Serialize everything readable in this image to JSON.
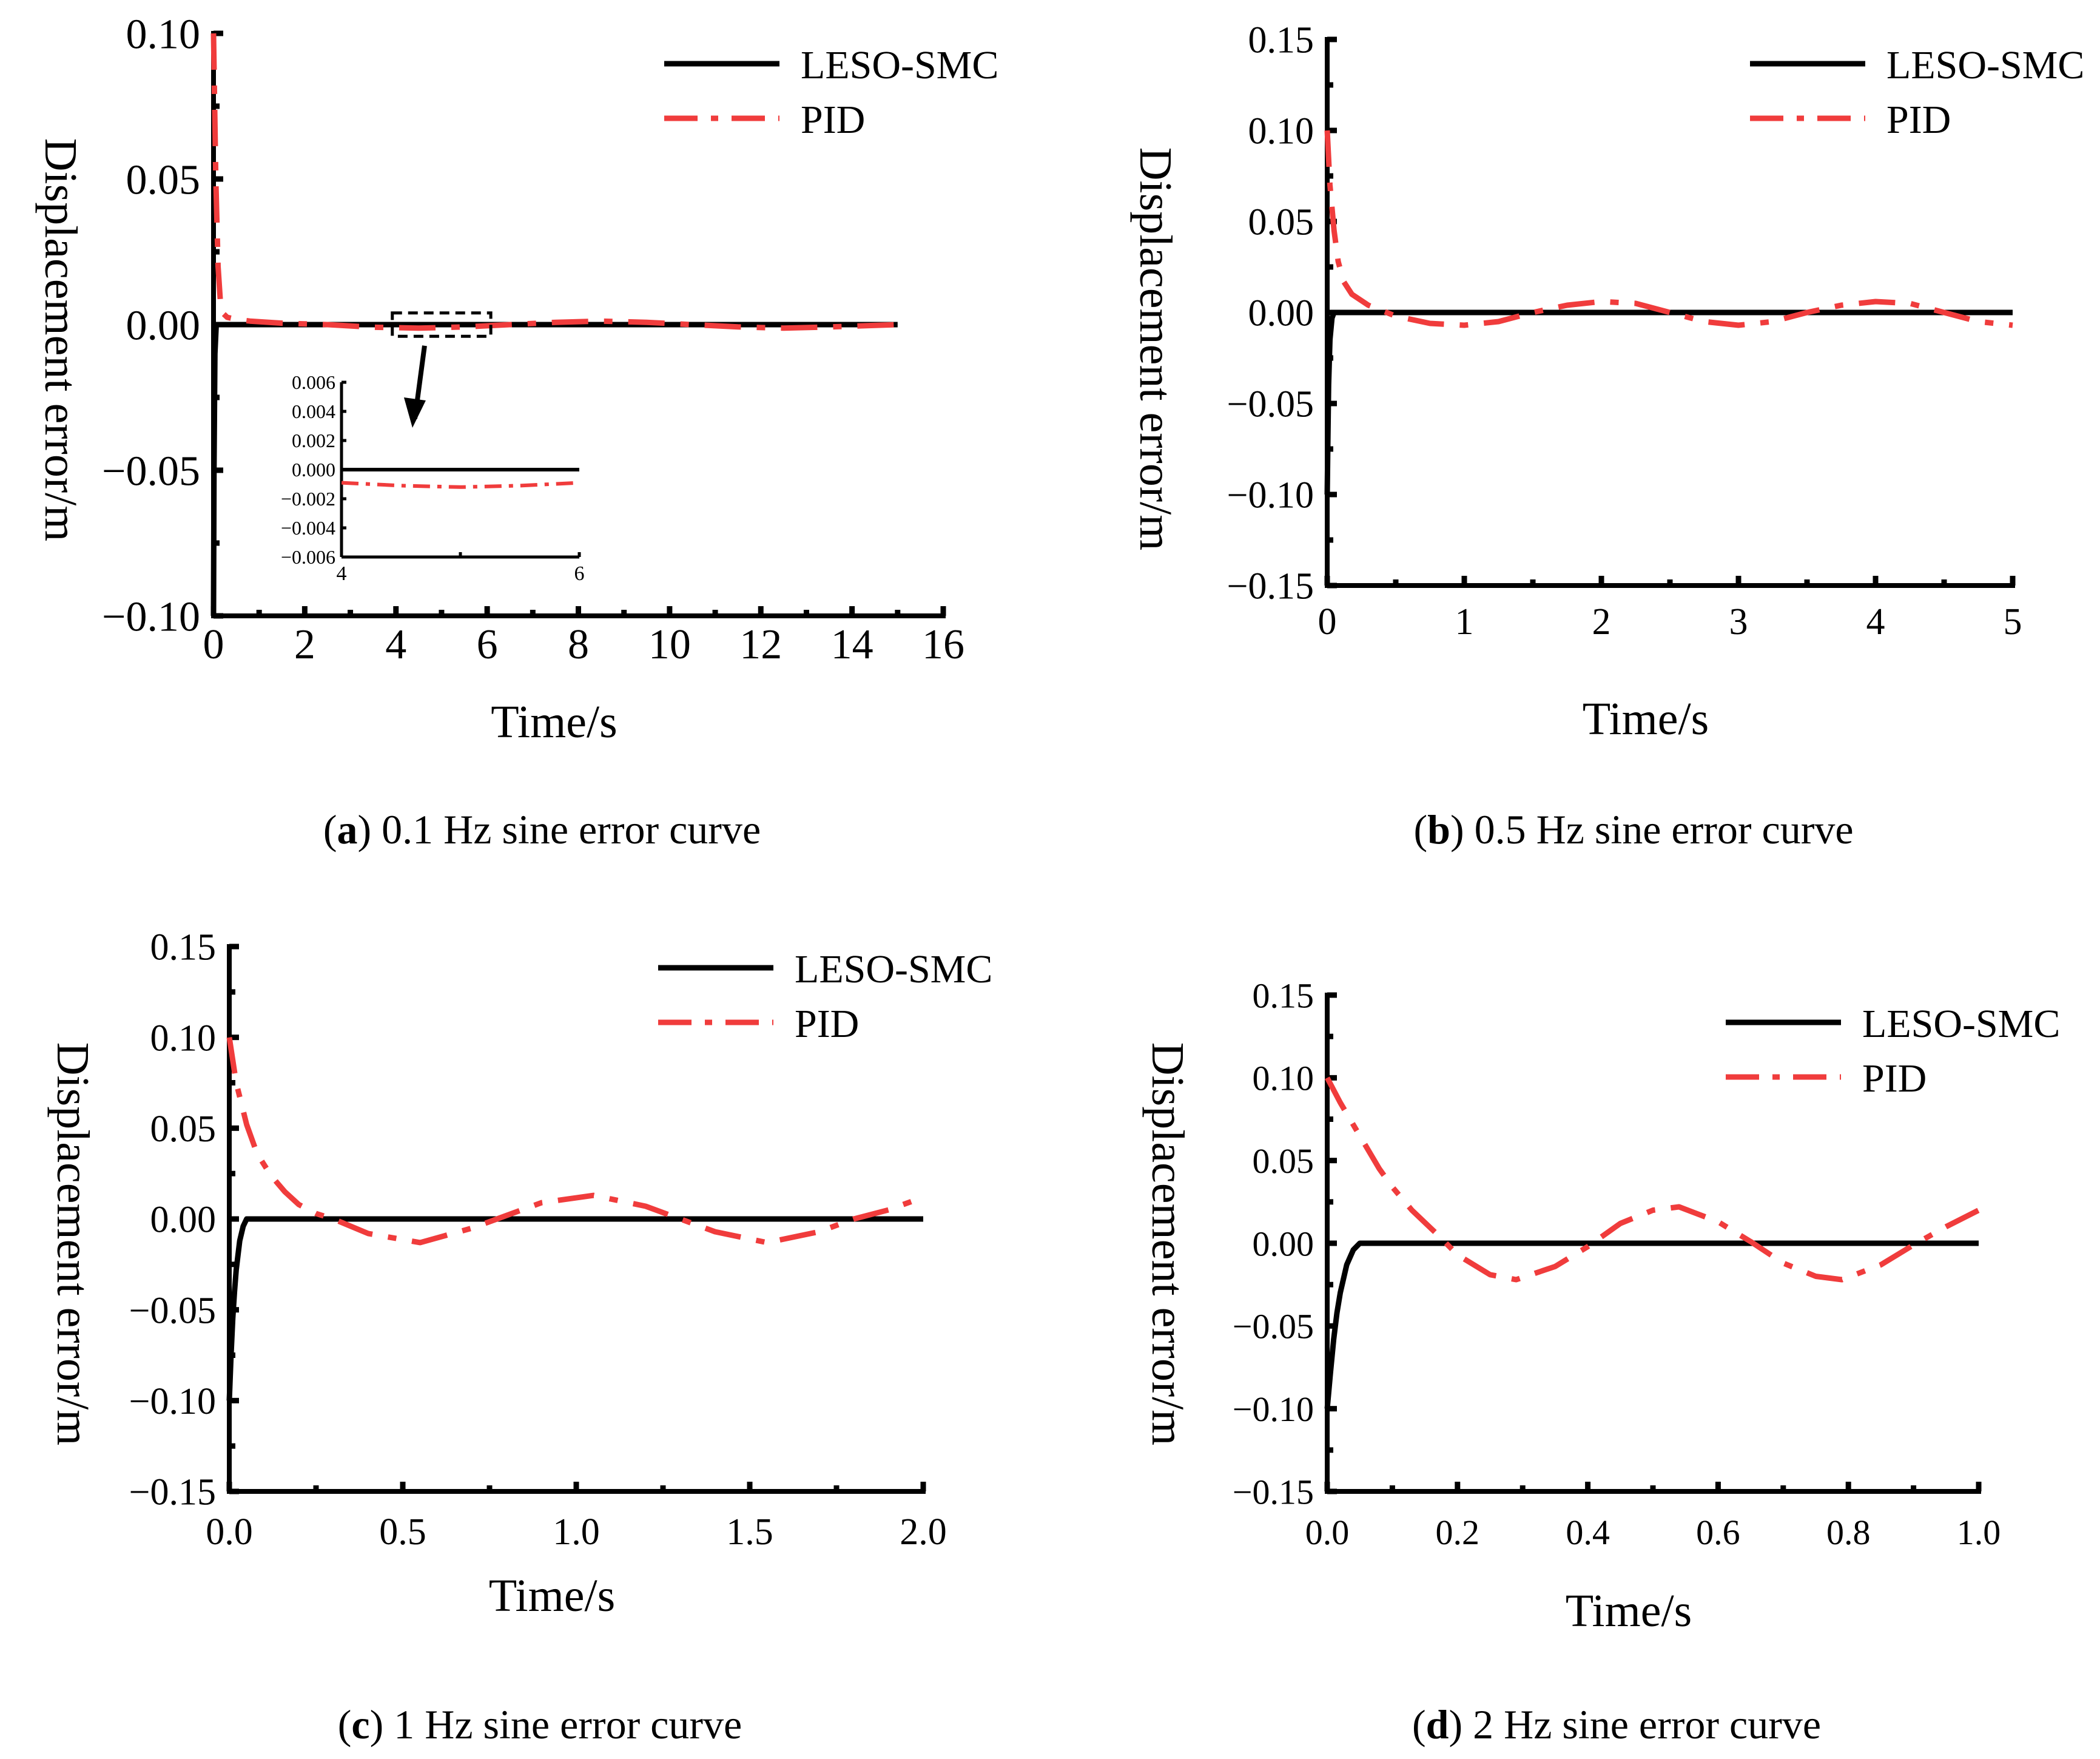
{
  "figure": {
    "panels": [
      {
        "id": "a",
        "caption_letter": "a",
        "caption_text": " 0.1 Hz sine error curve",
        "legend": [
          "LESO-SMC",
          "PID"
        ],
        "tick_labels_x": [
          "0",
          "2",
          "4",
          "6",
          "8",
          "10",
          "12",
          "14",
          "16"
        ],
        "tick_labels_y": [
          "0.10",
          "0.05",
          "0.00",
          "−0.05",
          "−0.10"
        ],
        "inset": {
          "tick_labels_y": [
            "0.006",
            "0.004",
            "0.002",
            "0.000",
            "−0.002",
            "−0.004",
            "−0.006"
          ],
          "tick_labels_x": [
            "4",
            "6"
          ]
        }
      },
      {
        "id": "b",
        "caption_letter": "b",
        "caption_text": " 0.5 Hz sine error curve",
        "legend": [
          "LESO-SMC",
          "PID"
        ],
        "tick_labels_x": [
          "0",
          "1",
          "2",
          "3",
          "4",
          "5"
        ],
        "tick_labels_y": [
          "0.15",
          "0.10",
          "0.05",
          "0.00",
          "−0.05",
          "−0.10",
          "−0.15"
        ]
      },
      {
        "id": "c",
        "caption_letter": "c",
        "caption_text": " 1 Hz sine error curve",
        "legend": [
          "LESO-SMC",
          "PID"
        ],
        "tick_labels_x": [
          "0.0",
          "0.5",
          "1.0",
          "1.5",
          "2.0"
        ],
        "tick_labels_y": [
          "0.15",
          "0.10",
          "0.05",
          "0.00",
          "−0.05",
          "−0.10",
          "−0.15"
        ]
      },
      {
        "id": "d",
        "caption_letter": "d",
        "caption_text": " 2 Hz sine error curve",
        "legend": [
          "LESO-SMC",
          "PID"
        ],
        "tick_labels_x": [
          "0.0",
          "0.2",
          "0.4",
          "0.6",
          "0.8",
          "1.0"
        ],
        "tick_labels_y": [
          "0.15",
          "0.10",
          "0.05",
          "0.00",
          "−0.05",
          "−0.10",
          "−0.15"
        ]
      }
    ]
  },
  "chart_data": [
    {
      "type": "line",
      "title": "(a) 0.1 Hz sine error curve",
      "xlabel": "Time/s",
      "ylabel": "Displacement error/m",
      "xlim": [
        0,
        16
      ],
      "ylim": [
        -0.1,
        0.1
      ],
      "x_ticks": [
        0,
        2,
        4,
        6,
        8,
        10,
        12,
        14,
        16
      ],
      "y_ticks": [
        0.1,
        0.05,
        0.0,
        -0.05,
        -0.1
      ],
      "legend_position": "top-right",
      "series": [
        {
          "name": "LESO-SMC",
          "style": "solid",
          "color": "#000000",
          "x": [
            0,
            0.01,
            0.03,
            0.06,
            0.1,
            0.2,
            15
          ],
          "y": [
            -0.1,
            -0.05,
            -0.01,
            0.0,
            0.0,
            0.0,
            0.0
          ]
        },
        {
          "name": "PID",
          "style": "dash-dot",
          "color": "#f03c3c",
          "x": [
            0,
            0.05,
            0.1,
            0.15,
            0.2,
            0.3,
            0.5,
            0.8,
            1.5,
            2.5,
            3.5,
            4.5,
            5.5,
            6.5,
            7.5,
            8.5,
            9.5,
            10.5,
            11.5,
            12.5,
            13.5,
            15
          ],
          "y": [
            0.1,
            0.05,
            0.02,
            0.008,
            0.004,
            0.0025,
            0.0018,
            0.0012,
            0.0005,
            0.0,
            -0.0009,
            -0.0012,
            -0.0008,
            0.0,
            0.0008,
            0.0012,
            0.0008,
            0.0,
            -0.0008,
            -0.0012,
            -0.0008,
            0.0
          ]
        }
      ],
      "inset": {
        "xlim": [
          4,
          6
        ],
        "ylim": [
          -0.006,
          0.006
        ],
        "x_ticks": [
          4,
          6
        ],
        "y_ticks": [
          0.006,
          0.004,
          0.002,
          0.0,
          -0.002,
          -0.004,
          -0.006
        ],
        "series": [
          {
            "name": "LESO-SMC",
            "x": [
              4,
              4.5,
              5,
              5.5,
              6
            ],
            "y": [
              0.0,
              0.0,
              0.0,
              0.0,
              0.0
            ]
          },
          {
            "name": "PID",
            "x": [
              4,
              4.5,
              5,
              5.5,
              6
            ],
            "y": [
              -0.0009,
              -0.0011,
              -0.0012,
              -0.0011,
              -0.0009
            ]
          }
        ]
      }
    },
    {
      "type": "line",
      "title": "(b) 0.5 Hz sine error curve",
      "xlabel": "Time/s",
      "ylabel": "Displacement error/m",
      "xlim": [
        0,
        5
      ],
      "ylim": [
        -0.15,
        0.15
      ],
      "x_ticks": [
        0,
        1,
        2,
        3,
        4,
        5
      ],
      "y_ticks": [
        0.15,
        0.1,
        0.05,
        0.0,
        -0.05,
        -0.1,
        -0.15
      ],
      "legend_position": "top-right",
      "series": [
        {
          "name": "LESO-SMC",
          "style": "solid",
          "color": "#000000",
          "x": [
            0,
            0.005,
            0.01,
            0.02,
            0.035,
            0.05,
            0.08,
            5
          ],
          "y": [
            -0.1,
            -0.07,
            -0.04,
            -0.015,
            -0.003,
            0.0,
            0.0,
            0.0
          ]
        },
        {
          "name": "PID",
          "style": "dash-dot",
          "color": "#f03c3c",
          "x": [
            0,
            0.02,
            0.05,
            0.08,
            0.12,
            0.18,
            0.3,
            0.5,
            0.75,
            1.0,
            1.25,
            1.5,
            1.75,
            2.0,
            2.25,
            2.5,
            2.75,
            3.0,
            3.25,
            3.5,
            3.75,
            4.0,
            4.25,
            4.5,
            4.75,
            5.0
          ],
          "y": [
            0.1,
            0.07,
            0.045,
            0.028,
            0.017,
            0.01,
            0.004,
            -0.002,
            -0.006,
            -0.007,
            -0.005,
            0.0,
            0.004,
            0.006,
            0.005,
            0.0,
            -0.005,
            -0.007,
            -0.005,
            0.0,
            0.004,
            0.006,
            0.005,
            0.0,
            -0.005,
            -0.007
          ]
        }
      ]
    },
    {
      "type": "line",
      "title": "(c) 1 Hz sine error curve",
      "xlabel": "Time/s",
      "ylabel": "Displacement error/m",
      "xlim": [
        0,
        2.0
      ],
      "ylim": [
        -0.15,
        0.15
      ],
      "x_ticks": [
        0.0,
        0.5,
        1.0,
        1.5,
        2.0
      ],
      "y_ticks": [
        0.15,
        0.1,
        0.05,
        0.0,
        -0.05,
        -0.1,
        -0.15
      ],
      "legend_position": "top-right",
      "series": [
        {
          "name": "LESO-SMC",
          "style": "solid",
          "color": "#000000",
          "x": [
            0,
            0.005,
            0.01,
            0.015,
            0.02,
            0.03,
            0.04,
            0.05,
            0.06,
            2.0
          ],
          "y": [
            -0.1,
            -0.075,
            -0.055,
            -0.04,
            -0.028,
            -0.012,
            -0.004,
            0.0,
            0.0,
            0.0
          ]
        },
        {
          "name": "PID",
          "style": "dash-dot",
          "color": "#f03c3c",
          "x": [
            0,
            0.02,
            0.05,
            0.08,
            0.12,
            0.16,
            0.2,
            0.25,
            0.3,
            0.4,
            0.55,
            0.7,
            0.8,
            0.9,
            1.05,
            1.2,
            1.3,
            1.4,
            1.55,
            1.7,
            1.8,
            1.9,
            2.0
          ],
          "y": [
            0.1,
            0.075,
            0.052,
            0.036,
            0.024,
            0.015,
            0.008,
            0.003,
            0.0,
            -0.008,
            -0.013,
            -0.005,
            0.002,
            0.009,
            0.013,
            0.007,
            0.0,
            -0.007,
            -0.013,
            -0.007,
            0.0,
            0.005,
            0.012
          ]
        }
      ]
    },
    {
      "type": "line",
      "title": "(d) 2 Hz sine error curve",
      "xlabel": "Time/s",
      "ylabel": "Displacement error/m",
      "xlim": [
        0,
        1.0
      ],
      "ylim": [
        -0.15,
        0.15
      ],
      "x_ticks": [
        0.0,
        0.2,
        0.4,
        0.6,
        0.8,
        1.0
      ],
      "y_ticks": [
        0.15,
        0.1,
        0.05,
        0.0,
        -0.05,
        -0.1,
        -0.15
      ],
      "legend_position": "top-right",
      "series": [
        {
          "name": "LESO-SMC",
          "style": "solid",
          "color": "#000000",
          "x": [
            0,
            0.005,
            0.01,
            0.015,
            0.02,
            0.03,
            0.04,
            0.05,
            0.06,
            1.0
          ],
          "y": [
            -0.1,
            -0.078,
            -0.058,
            -0.042,
            -0.03,
            -0.013,
            -0.004,
            0.0,
            0.0,
            0.0
          ]
        },
        {
          "name": "PID",
          "style": "dash-dot",
          "color": "#f03c3c",
          "x": [
            0,
            0.02,
            0.05,
            0.08,
            0.1,
            0.13,
            0.17,
            0.2,
            0.25,
            0.29,
            0.35,
            0.4,
            0.45,
            0.5,
            0.54,
            0.6,
            0.65,
            0.7,
            0.75,
            0.79,
            0.85,
            0.9,
            0.95,
            1.0
          ],
          "y": [
            0.1,
            0.085,
            0.065,
            0.045,
            0.034,
            0.02,
            0.005,
            -0.007,
            -0.019,
            -0.022,
            -0.014,
            -0.002,
            0.012,
            0.02,
            0.022,
            0.013,
            0.001,
            -0.012,
            -0.02,
            -0.022,
            -0.013,
            -0.001,
            0.01,
            0.02
          ]
        }
      ]
    }
  ]
}
